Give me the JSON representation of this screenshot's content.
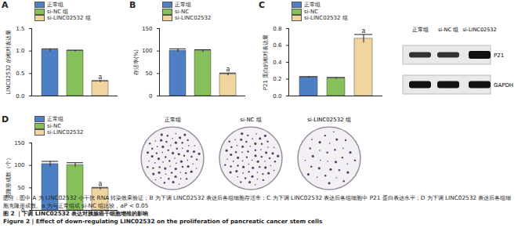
{
  "chart_data": [
    {
      "type": "bar",
      "title": "A",
      "y_label": "LINC02532 的相对表达量",
      "categories": [
        "正常组",
        "si-NC 组",
        "si-LINC02532 组"
      ],
      "values": [
        1.02,
        1.0,
        0.32
      ],
      "errors": [
        0.03,
        0.02,
        0.02
      ],
      "colors": [
        "#4e7fc4",
        "#86c05a",
        "#f0d69e"
      ],
      "ylim": [
        0,
        1.5
      ],
      "yticks": [
        {
          "value": 0,
          "label": "0.0"
        },
        0.5,
        {
          "value": 1,
          "label": "1.0"
        },
        1.5
      ],
      "legend": "top-left",
      "tick_labels": "y",
      "annotations": [
        {
          "category": "si-LINC02532 组",
          "text": "a"
        }
      ]
    },
    {
      "type": "bar",
      "title": "B",
      "y_label": "存活率(%)",
      "categories": [
        "正常组",
        "si-NC",
        "si-LINC02532"
      ],
      "values": [
        101,
        100,
        48
      ],
      "errors": [
        4,
        3,
        3
      ],
      "colors": [
        "#4e7fc4",
        "#86c05a",
        "#f0d69e"
      ],
      "ylim": [
        0,
        150
      ],
      "yticks": [
        0,
        50,
        100,
        150
      ],
      "legend": "top-left",
      "tick_labels": "y",
      "annotations": [
        {
          "category": "si-LINC02532",
          "text": "a"
        }
      ]
    },
    {
      "type": "bar",
      "title": "C",
      "y_label": "P21 蛋白的相对表达量",
      "categories": [
        "正常组",
        "si-NC",
        "si-LINC02532 组"
      ],
      "values": [
        0.22,
        0.21,
        0.68
      ],
      "errors": [
        0.01,
        0.01,
        0.05
      ],
      "colors": [
        "#4e7fc4",
        "#86c05a",
        "#f0d69e"
      ],
      "ylim": [
        0,
        0.8
      ],
      "yticks": [
        {
          "value": 0,
          "label": "0.0"
        },
        0.2,
        0.4,
        0.6,
        0.8
      ],
      "legend": "top-left",
      "tick_labels": "y",
      "annotations": [
        {
          "category": "si-LINC02532 组",
          "text": "a"
        }
      ]
    },
    {
      "type": "bar",
      "title": "D",
      "y_label": "克隆形成数（个）",
      "categories": [
        "正常组",
        "si-NC",
        "si-LINC02532"
      ],
      "values": [
        103,
        101,
        48
      ],
      "errors": [
        6,
        5,
        3
      ],
      "colors": [
        "#4e7fc4",
        "#86c05a",
        "#f0d69e"
      ],
      "ylim": [
        0,
        150
      ],
      "yticks": [
        0,
        50,
        100,
        150
      ],
      "legend": "top-left",
      "tick_labels": "y",
      "annotations": [
        {
          "category": "si-LINC02532",
          "text": "a"
        }
      ]
    }
  ],
  "western_blot": {
    "lanes": [
      "正常组",
      "si-NC 组",
      "si-LINC02532"
    ],
    "rows": [
      "P21",
      "GAPDH"
    ]
  },
  "colony_images": {
    "labels": [
      "正常组",
      "si-NC 组",
      "si-LINC02532 组"
    ]
  },
  "caption": {
    "note": "图注：图中 A 为 LINC02532 小干扰 RNA 转染效果验证；B 为下调 LINC02532 表达后各组细胞存活率；C 为下调 LINC02532 表达后各组细胞中 P21 蛋白表达水平；D 为下调 LINC02532 表达后各组细胞克隆形成数。a 为与正常组或 si-NC 组比较，aP < 0.05",
    "title_cn": "图 2 ｜下调 LINC02532 表达对胰腺癌干细胞增殖的影响",
    "title_en": "Figure 2 | Effect of down-regulating LINC02532 on the proliferation of pancreatic cancer stem cells"
  }
}
